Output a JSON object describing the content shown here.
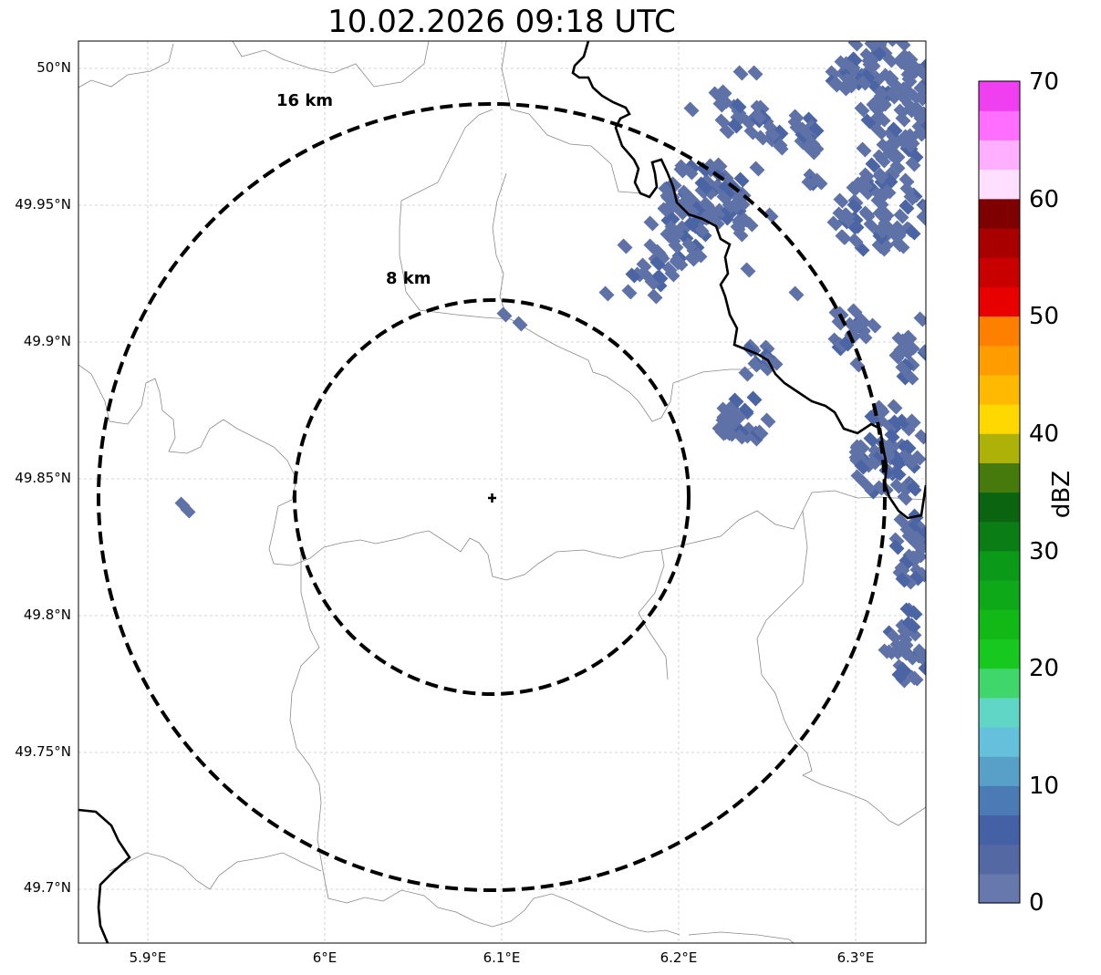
{
  "title": "10.02.2026 09:18 UTC",
  "map": {
    "lat_labels": [
      "50°N",
      "49.95°N",
      "49.9°N",
      "49.85°N",
      "49.8°N",
      "49.75°N",
      "49.7°N"
    ],
    "lon_labels": [
      "5.9°E",
      "6°E",
      "6.1°E",
      "6.2°E",
      "6.3°E"
    ],
    "rings": [
      {
        "label": "16 km",
        "radius_km": 16
      },
      {
        "label": "8 km",
        "radius_km": 8
      }
    ],
    "center_marker": "radar-center-cross",
    "echo_color": "#5f72a8",
    "echo_color_strong": "#4a64a4"
  },
  "colorbar": {
    "unit": "dBZ",
    "ticks": [
      "0",
      "10",
      "20",
      "30",
      "40",
      "50",
      "60",
      "70"
    ],
    "colors": [
      "#6678ac",
      "#5468a4",
      "#4561a6",
      "#4b7ab4",
      "#59a0c8",
      "#65c0dc",
      "#5fd6c6",
      "#3fd66c",
      "#17c91f",
      "#12b916",
      "#0da918",
      "#0b9918",
      "#0a7d14",
      "#0b6410",
      "#467a0c",
      "#adb108",
      "#ffd800",
      "#ffb900",
      "#ff9d00",
      "#ff7f00",
      "#e80000",
      "#c80000",
      "#a80000",
      "#7f0000",
      "#ffdfff",
      "#ffafff",
      "#ff6fff",
      "#f03ff0"
    ]
  }
}
